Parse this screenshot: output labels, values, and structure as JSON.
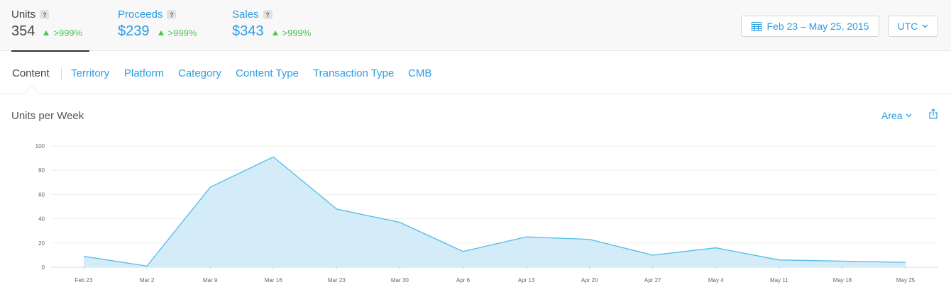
{
  "metrics": [
    {
      "label": "Units",
      "help": "?",
      "value": "354",
      "delta": ">999%"
    },
    {
      "label": "Proceeds",
      "help": "?",
      "value": "$239",
      "delta": ">999%"
    },
    {
      "label": "Sales",
      "help": "?",
      "value": "$343",
      "delta": ">999%"
    }
  ],
  "toolbar": {
    "date_range": "Feb 23 – May 25, 2015",
    "timezone": "UTC",
    "date_icon": "calendar-icon",
    "chevron_icon": "chevron-down-icon"
  },
  "tabs": [
    {
      "label": "Content",
      "active": true
    },
    {
      "label": "Territory"
    },
    {
      "label": "Platform"
    },
    {
      "label": "Category"
    },
    {
      "label": "Content Type"
    },
    {
      "label": "Transaction Type"
    },
    {
      "label": "CMB"
    }
  ],
  "chart_header": {
    "title": "Units per Week",
    "chart_type_selector": "Area",
    "share_icon": "share-icon"
  },
  "colors": {
    "accent": "#2b9de2",
    "positive": "#4cc74c",
    "area_fill": "#d4ebf8",
    "area_line": "#5bc0eb"
  },
  "chart_data": {
    "type": "area",
    "title": "Units per Week",
    "categories": [
      "Feb 23",
      "Mar 2",
      "Mar 9",
      "Mar 16",
      "Mar 23",
      "Mar 30",
      "Apr 6",
      "Apr 13",
      "Apr 20",
      "Apr 27",
      "May 4",
      "May 11",
      "May 18",
      "May 25"
    ],
    "series": [
      {
        "values": [
          9,
          1,
          66,
          91,
          48,
          37,
          13,
          25,
          23,
          10,
          16,
          6,
          5,
          4
        ]
      }
    ],
    "yticks": [
      0,
      20,
      40,
      60,
      80,
      100
    ],
    "ylim": [
      0,
      100
    ],
    "grid": true,
    "legend": "none"
  }
}
